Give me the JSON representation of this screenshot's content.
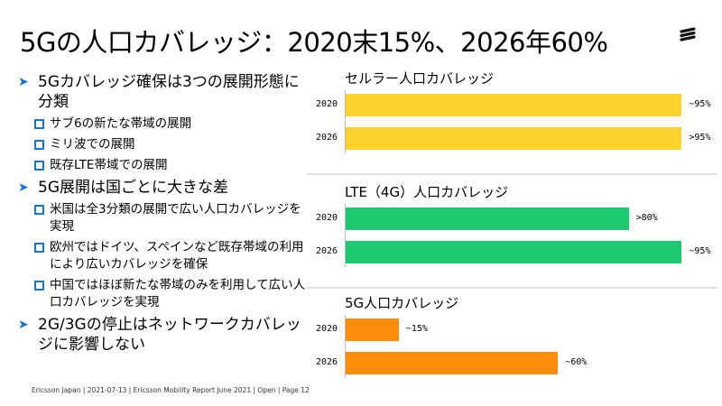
{
  "title": "5Gの人口カバレッジ：2020末15%、2026年60%",
  "bullets": [
    {
      "text": "5Gカバレッジ確保は3つの展開形態に分類",
      "sub": [
        "サブ6の新たな帯域の展開",
        "ミリ波での展開",
        "既存LTE帯域での展開"
      ]
    },
    {
      "text": "5G展開は国ごとに大きな差",
      "sub": [
        "米国は全3分類の展開で広い人口カバレッジを実現",
        "欧州ではドイツ、スペインなど既存帯域の利用により広いカバレッジを確保",
        "中国ではほぼ新たな帯域のみを利用して広い人口カバレッジを実現"
      ]
    },
    {
      "text": "2G/3Gの停止はネットワークカバレッジに影響しない",
      "sub": []
    }
  ],
  "footer": "Ericsson Japan | 2021-07-13 | Ericsson Mobility Report June 2021 | Open | Page 12",
  "logo_alt": "Ericsson",
  "chart_data": [
    {
      "type": "bar",
      "title": "セルラー人口カバレッジ",
      "categories": [
        "2020",
        "2026"
      ],
      "values": [
        95,
        95
      ],
      "labels": [
        "~95%",
        ">95%"
      ],
      "color": "#fad22d",
      "xlim": [
        0,
        100
      ]
    },
    {
      "type": "bar",
      "title": "LTE（4G）人口カバレッジ",
      "categories": [
        "2020",
        "2026"
      ],
      "values": [
        80,
        95
      ],
      "labels": [
        ">80%",
        "~95%"
      ],
      "color": "#1dc86e",
      "xlim": [
        0,
        100
      ]
    },
    {
      "type": "bar",
      "title": "5G人口カバレッジ",
      "categories": [
        "2020",
        "2026"
      ],
      "values": [
        15,
        60
      ],
      "labels": [
        "~15%",
        "~60%"
      ],
      "color": "#ff8c0a",
      "xlim": [
        0,
        100
      ]
    }
  ]
}
